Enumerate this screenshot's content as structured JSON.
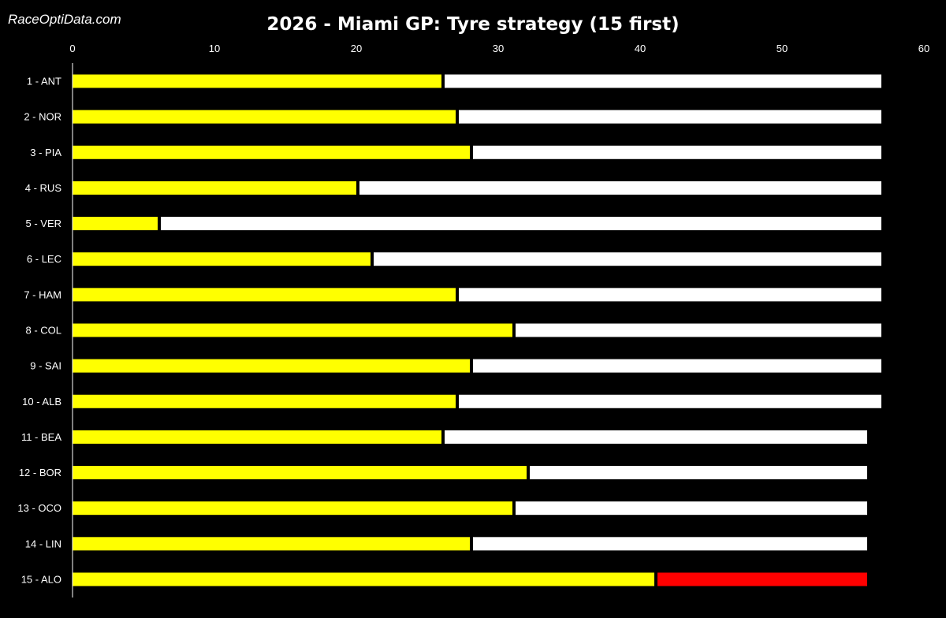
{
  "watermark": "RaceOptiData.com",
  "colors": {
    "background": "#000000",
    "text": "#ffffff",
    "axis": "#ffffff"
  },
  "chart_data": {
    "type": "bar",
    "orientation": "horizontal",
    "stacked": true,
    "title": "2026 - Miami GP: Tyre strategy (15 first)",
    "xlabel": "",
    "ylabel": "",
    "xlim": [
      0,
      60
    ],
    "xticks": [
      0,
      10,
      20,
      30,
      40,
      50,
      60
    ],
    "x_axis_position": "top",
    "grid": false,
    "legend": "none",
    "categories": [
      "1 - ANT",
      "2 - NOR",
      "3 - PIA",
      "4 - RUS",
      "5 - VER",
      "6 - LEC",
      "7 - HAM",
      "8 - COL",
      "9 - SAI",
      "10 - ALB",
      "11 - BEA",
      "12 - BOR",
      "13 - OCO",
      "14 - LIN",
      "15 - ALO"
    ],
    "stints": [
      [
        {
          "laps": 26,
          "color": "#ffff00"
        },
        {
          "laps": 31,
          "color": "#ffffff"
        }
      ],
      [
        {
          "laps": 27,
          "color": "#ffff00"
        },
        {
          "laps": 30,
          "color": "#ffffff"
        }
      ],
      [
        {
          "laps": 28,
          "color": "#ffff00"
        },
        {
          "laps": 29,
          "color": "#ffffff"
        }
      ],
      [
        {
          "laps": 20,
          "color": "#ffff00"
        },
        {
          "laps": 37,
          "color": "#ffffff"
        }
      ],
      [
        {
          "laps": 6,
          "color": "#ffff00"
        },
        {
          "laps": 51,
          "color": "#ffffff"
        }
      ],
      [
        {
          "laps": 21,
          "color": "#ffff00"
        },
        {
          "laps": 36,
          "color": "#ffffff"
        }
      ],
      [
        {
          "laps": 27,
          "color": "#ffff00"
        },
        {
          "laps": 30,
          "color": "#ffffff"
        }
      ],
      [
        {
          "laps": 31,
          "color": "#ffff00"
        },
        {
          "laps": 26,
          "color": "#ffffff"
        }
      ],
      [
        {
          "laps": 28,
          "color": "#ffff00"
        },
        {
          "laps": 29,
          "color": "#ffffff"
        }
      ],
      [
        {
          "laps": 27,
          "color": "#ffff00"
        },
        {
          "laps": 30,
          "color": "#ffffff"
        }
      ],
      [
        {
          "laps": 26,
          "color": "#ffff00"
        },
        {
          "laps": 30,
          "color": "#ffffff"
        }
      ],
      [
        {
          "laps": 32,
          "color": "#ffff00"
        },
        {
          "laps": 24,
          "color": "#ffffff"
        }
      ],
      [
        {
          "laps": 31,
          "color": "#ffff00"
        },
        {
          "laps": 25,
          "color": "#ffffff"
        }
      ],
      [
        {
          "laps": 28,
          "color": "#ffff00"
        },
        {
          "laps": 28,
          "color": "#ffffff"
        }
      ],
      [
        {
          "laps": 41,
          "color": "#ffff00"
        },
        {
          "laps": 15,
          "color": "#ff0000"
        }
      ]
    ]
  }
}
